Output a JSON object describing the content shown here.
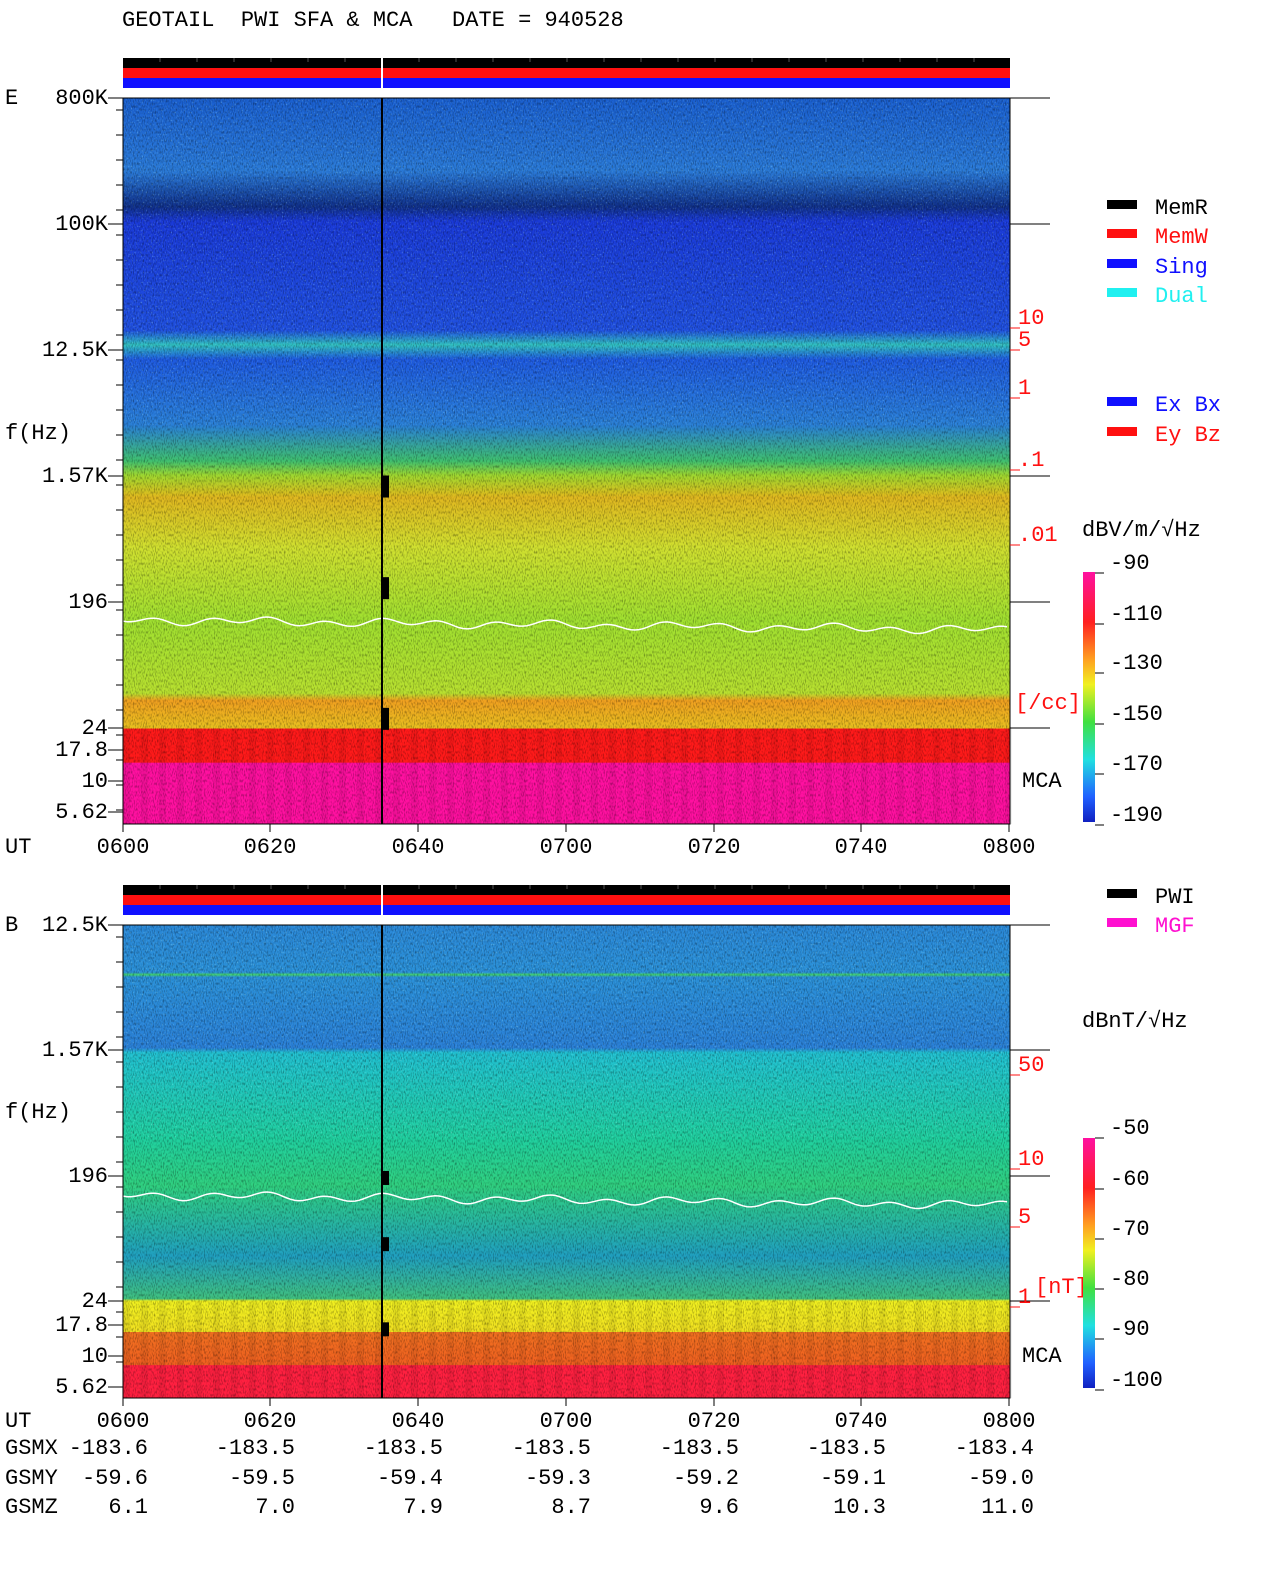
{
  "header": {
    "title": "GEOTAIL  PWI SFA & MCA   DATE = 940528"
  },
  "legend_mode": {
    "items": [
      "MemR",
      "MemW",
      "Sing",
      "Dual"
    ]
  },
  "legend_axes": {
    "items": [
      "Ex Bx",
      "Ey Bz"
    ]
  },
  "legend_source": {
    "items": [
      "PWI",
      "MGF"
    ]
  },
  "panels": [
    {
      "label": "E",
      "axis_label": "f(Hz)",
      "freq_labels": [
        "800K",
        "100K",
        "12.5K",
        "1.57K",
        "196",
        "24",
        "17.8",
        "10",
        "5.62"
      ],
      "density_labels": [
        "10",
        "5",
        "1",
        ".1",
        ".01"
      ],
      "density_unit": "[/cc]",
      "mca": "MCA",
      "time_axis": "UT",
      "time_labels": [
        "0600",
        "0620",
        "0640",
        "0700",
        "0720",
        "0740",
        "0800"
      ],
      "colorbar": {
        "unit": "dBV/m/√Hz",
        "ticks": [
          "-90",
          "-110",
          "-130",
          "-150",
          "-170",
          "-190"
        ]
      }
    },
    {
      "label": "B",
      "axis_label": "f(Hz)",
      "freq_labels": [
        "12.5K",
        "1.57K",
        "196",
        "24",
        "17.8",
        "10",
        "5.62"
      ],
      "density_labels": [
        "50",
        "10",
        "5",
        "1"
      ],
      "density_unit": "[nT]",
      "mca": "MCA",
      "time_axis": "UT",
      "time_labels": [
        "0600",
        "0620",
        "0640",
        "0700",
        "0720",
        "0740",
        "0800"
      ],
      "colorbar": {
        "unit": "dBnT/√Hz",
        "ticks": [
          "-50",
          "-60",
          "-70",
          "-80",
          "-90",
          "-100"
        ]
      }
    }
  ],
  "orbit": [
    {
      "name": "GSMX",
      "values": [
        "-183.6",
        "-183.5",
        "-183.5",
        "-183.5",
        "-183.5",
        "-183.5",
        "-183.4"
      ]
    },
    {
      "name": "GSMY",
      "values": [
        "-59.6",
        "-59.5",
        "-59.4",
        "-59.3",
        "-59.2",
        "-59.1",
        "-59.0"
      ]
    },
    {
      "name": "GSMZ",
      "values": [
        "6.1",
        "7.0",
        "7.9",
        "8.7",
        "9.6",
        "10.3",
        "11.0"
      ]
    }
  ]
}
